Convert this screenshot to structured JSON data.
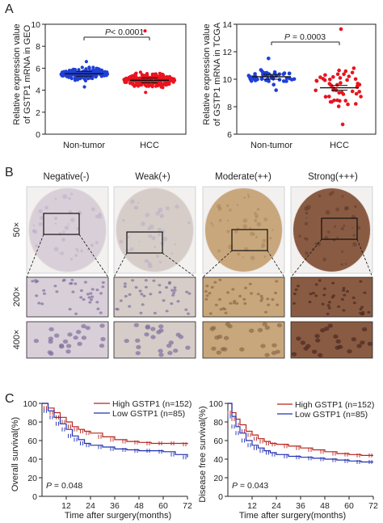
{
  "panel_labels": [
    "A",
    "B",
    "C"
  ],
  "panel_a": {
    "geo": {
      "ylabel_1": "Relative expression value",
      "ylabel_2": "of GSTP1 mRNA in GEO",
      "y_ticks": [
        "0",
        "2",
        "4",
        "6",
        "8",
        "10"
      ],
      "categories": [
        "Non-tumor",
        "HCC"
      ],
      "pvalue_prefix": "P",
      "pvalue_rest": "< 0.0001"
    },
    "tcga": {
      "ylabel_1": "Relative expression value",
      "ylabel_2": "of GSTP1 mRNA in TCGA",
      "y_ticks": [
        "6",
        "8",
        "10",
        "12",
        "14"
      ],
      "categories": [
        "Non-tumor",
        "HCC"
      ],
      "pvalue_prefix": "P",
      "pvalue_rest": " = 0.0003"
    }
  },
  "panel_b": {
    "columns": [
      "Negative(-)",
      "Weak(+)",
      "Moderate(++)",
      "Strong(+++)"
    ],
    "row_labels": [
      "50×",
      "200×",
      "400×"
    ],
    "stain_colors": [
      "#d9cfd9",
      "#d6cdc9",
      "#c9a77c",
      "#8a5b43"
    ]
  },
  "panel_c": {
    "os": {
      "ylabel": "Overall survival(%)",
      "xlabel": "Time after surgery(months)",
      "legend_high": "High GSTP1  (n=152)",
      "legend_low": "Low GSTP1    (n=85)",
      "pvalue_prefix": "P",
      "pvalue_rest": " = 0.048",
      "x_ticks": [
        "12",
        "24",
        "36",
        "48",
        "60",
        "72"
      ],
      "y_ticks": [
        "0",
        "20",
        "40",
        "60",
        "80",
        "100"
      ]
    },
    "dfs": {
      "ylabel": "Disease free survival(%)",
      "xlabel": "Time after surgery(months)",
      "legend_high": "High GSTP1  (n=152)",
      "legend_low": "Low GSTP1    (n=85)",
      "pvalue_prefix": "P",
      "pvalue_rest": " = 0.043",
      "x_ticks": [
        "12",
        "24",
        "36",
        "48",
        "60",
        "72"
      ],
      "y_ticks": [
        "0",
        "20",
        "40",
        "60",
        "80",
        "100"
      ]
    }
  },
  "chart_data": [
    {
      "type": "scatter",
      "ylabel": "Relative expression value of GSTP1 mRNA in GEO",
      "categories": [
        "Non-tumor",
        "HCC"
      ],
      "ylim": [
        0,
        10
      ],
      "series": [
        {
          "name": "Non-tumor",
          "color": "#1f3fd6",
          "mean": 5.5,
          "range": [
            4.3,
            6.6
          ]
        },
        {
          "name": "HCC",
          "color": "#e8141e",
          "mean": 4.9,
          "range": [
            3.8,
            9.4
          ]
        }
      ],
      "annotation": "P< 0.0001"
    },
    {
      "type": "scatter",
      "ylabel": "Relative expression value of GSTP1 mRNA in TCGA",
      "categories": [
        "Non-tumor",
        "HCC"
      ],
      "ylim": [
        5,
        14
      ],
      "series": [
        {
          "name": "Non-tumor",
          "color": "#1f3fd6",
          "mean": 9.7,
          "range": [
            8.6,
            11.2
          ]
        },
        {
          "name": "HCC",
          "color": "#e8141e",
          "mean": 8.8,
          "range": [
            5.8,
            13.6
          ]
        }
      ],
      "annotation": "P = 0.0003"
    },
    {
      "type": "line",
      "title": "",
      "xlabel": "Time after surgery(months)",
      "ylabel": "Overall survival(%)",
      "xlim": [
        0,
        72
      ],
      "ylim": [
        0,
        100
      ],
      "x_ticks": [
        12,
        24,
        36,
        48,
        60,
        72
      ],
      "series": [
        {
          "name": "High GSTP1 (n=152)",
          "color": "#b5261e",
          "x": [
            0,
            3,
            6,
            9,
            12,
            15,
            18,
            21,
            24,
            30,
            36,
            42,
            48,
            54,
            60,
            66,
            72
          ],
          "y": [
            100,
            95,
            90,
            85,
            80,
            75,
            72,
            70,
            68,
            64,
            61,
            59,
            58,
            57,
            57,
            57,
            56
          ]
        },
        {
          "name": "Low GSTP1 (n=85)",
          "color": "#2030b0",
          "x": [
            0,
            3,
            6,
            9,
            12,
            15,
            18,
            21,
            24,
            30,
            36,
            42,
            48,
            54,
            60,
            66,
            72
          ],
          "y": [
            100,
            92,
            85,
            78,
            72,
            65,
            61,
            57,
            55,
            53,
            51,
            50,
            49,
            49,
            48,
            45,
            42
          ]
        }
      ],
      "annotation": "P = 0.048"
    },
    {
      "type": "line",
      "title": "",
      "xlabel": "Time after surgery(months)",
      "ylabel": "Disease free survival(%)",
      "xlim": [
        0,
        72
      ],
      "ylim": [
        0,
        100
      ],
      "x_ticks": [
        12,
        24,
        36,
        48,
        60,
        72
      ],
      "series": [
        {
          "name": "High GSTP1 (n=152)",
          "color": "#b5261e",
          "x": [
            0,
            2,
            4,
            6,
            9,
            12,
            15,
            18,
            21,
            24,
            30,
            36,
            42,
            48,
            54,
            60,
            66,
            72
          ],
          "y": [
            100,
            90,
            83,
            77,
            70,
            66,
            62,
            59,
            57,
            56,
            54,
            52,
            50,
            48,
            46,
            45,
            44,
            44
          ]
        },
        {
          "name": "Low GSTP1 (n=85)",
          "color": "#2030b0",
          "x": [
            0,
            2,
            4,
            6,
            9,
            12,
            15,
            18,
            21,
            24,
            30,
            36,
            42,
            48,
            54,
            60,
            66,
            72
          ],
          "y": [
            100,
            86,
            75,
            68,
            60,
            55,
            52,
            49,
            47,
            45,
            43,
            42,
            41,
            40,
            39,
            38,
            37,
            37
          ]
        }
      ],
      "annotation": "P = 0.043"
    }
  ]
}
